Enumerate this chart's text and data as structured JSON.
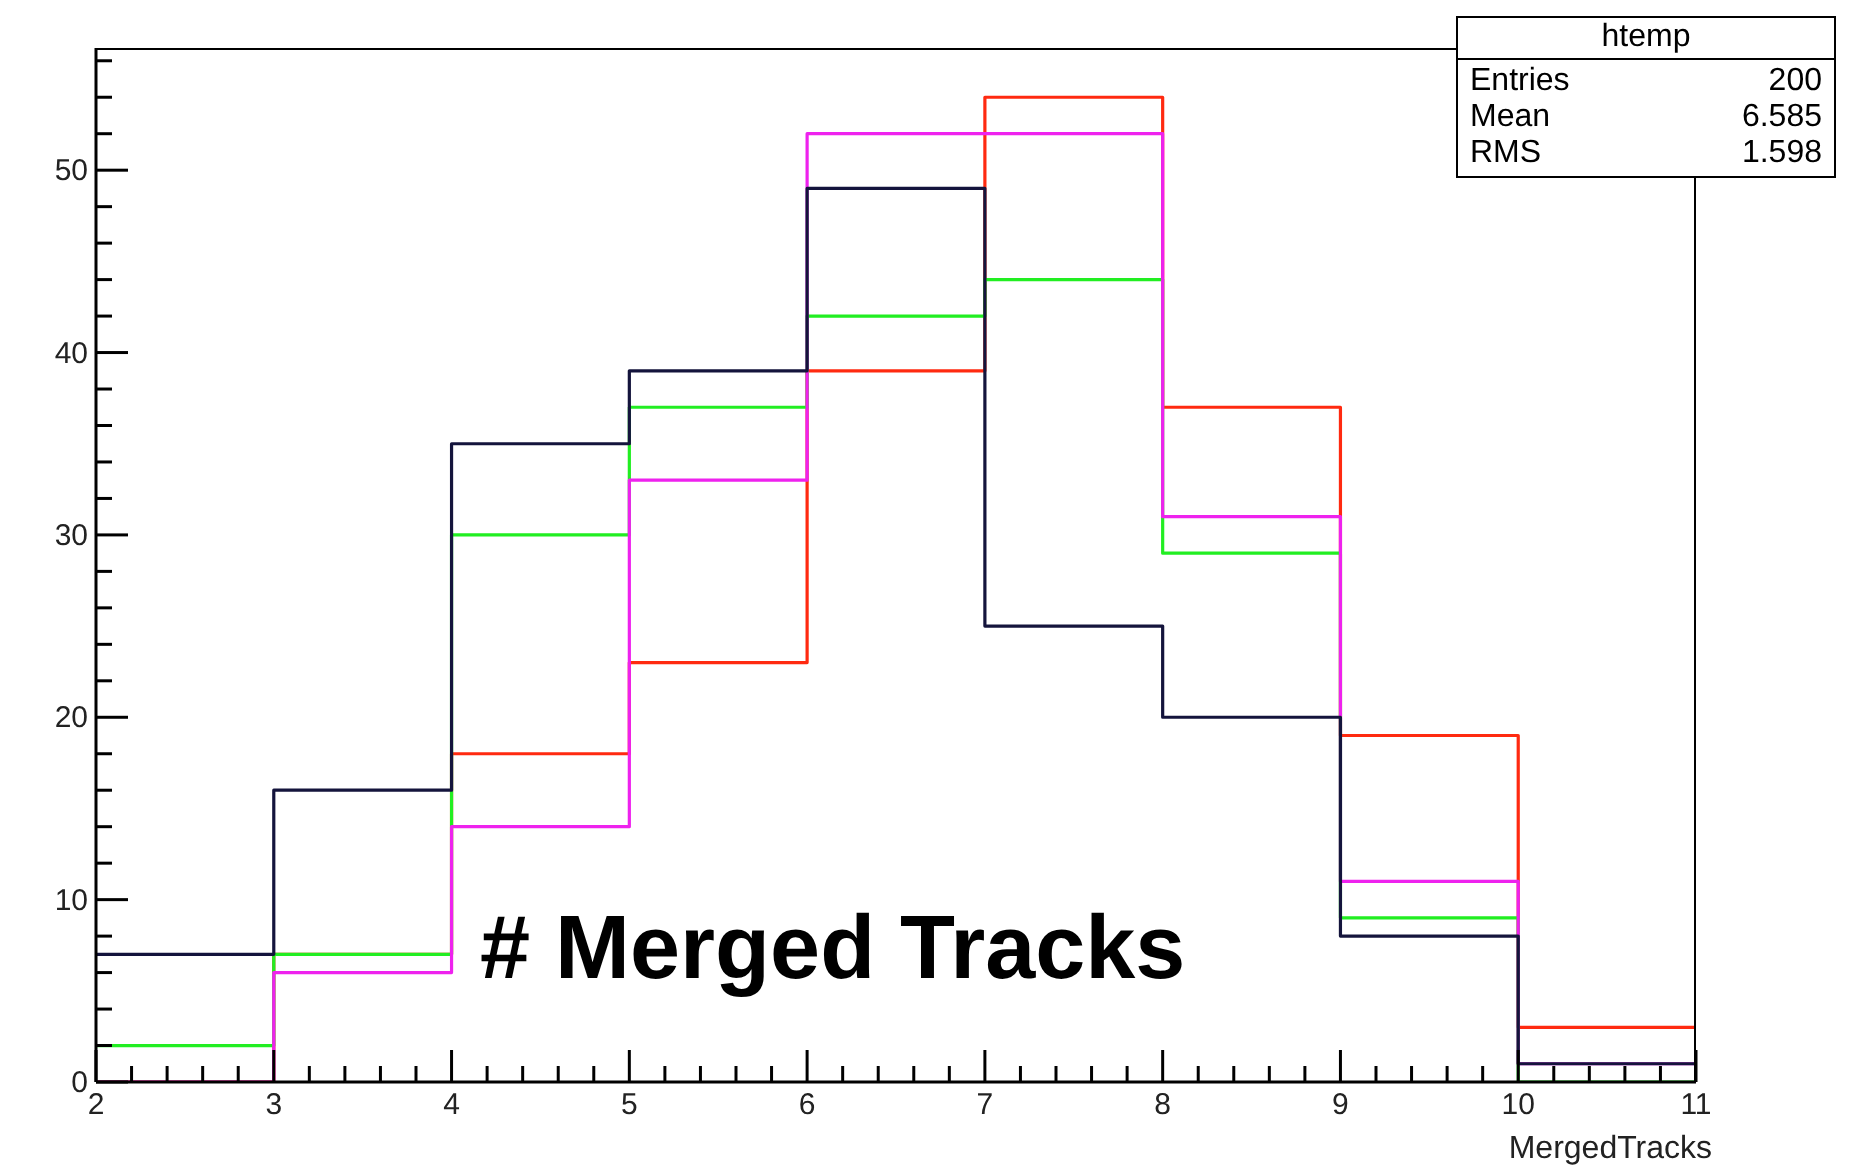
{
  "chart_data": {
    "type": "histogram",
    "xlabel": "MergedTracks",
    "bins": [
      2,
      3,
      4,
      5,
      6,
      7,
      8,
      9,
      10,
      11
    ],
    "series": [
      {
        "color": "#ff2a10",
        "values": [
          0,
          7,
          18,
          23,
          39,
          54,
          37,
          19,
          3
        ]
      },
      {
        "color": "#22ee22",
        "values": [
          2,
          7,
          30,
          37,
          42,
          44,
          29,
          9,
          0
        ]
      },
      {
        "color": "#ee22ee",
        "values": [
          0,
          6,
          14,
          33,
          52,
          52,
          31,
          11,
          1
        ]
      },
      {
        "color": "#14143c",
        "values": [
          7,
          16,
          35,
          39,
          49,
          25,
          20,
          8,
          1
        ]
      }
    ],
    "xlim": [
      2,
      11
    ],
    "xticks": [
      2,
      {
        "value": 2.2,
        "label": null
      },
      {
        "value": 2.4,
        "label": null
      },
      {
        "value": 2.6,
        "label": null
      },
      {
        "value": 2.8,
        "label": null
      },
      3,
      {
        "value": 3.2,
        "label": null
      },
      {
        "value": 3.4,
        "label": null
      },
      {
        "value": 3.6,
        "label": null
      },
      {
        "value": 3.8,
        "label": null
      },
      4,
      {
        "value": 4.2,
        "label": null
      },
      {
        "value": 4.4,
        "label": null
      },
      {
        "value": 4.6,
        "label": null
      },
      {
        "value": 4.8,
        "label": null
      },
      5,
      {
        "value": 5.2,
        "label": null
      },
      {
        "value": 5.4,
        "label": null
      },
      {
        "value": 5.6,
        "label": null
      },
      {
        "value": 5.8,
        "label": null
      },
      6,
      {
        "value": 6.2,
        "label": null
      },
      {
        "value": 6.4,
        "label": null
      },
      {
        "value": 6.6,
        "label": null
      },
      {
        "value": 6.8,
        "label": null
      },
      7,
      {
        "value": 7.2,
        "label": null
      },
      {
        "value": 7.4,
        "label": null
      },
      {
        "value": 7.6,
        "label": null
      },
      {
        "value": 7.8,
        "label": null
      },
      8,
      {
        "value": 8.2,
        "label": null
      },
      {
        "value": 8.4,
        "label": null
      },
      {
        "value": 8.6,
        "label": null
      },
      {
        "value": 8.8,
        "label": null
      },
      9,
      {
        "value": 9.2,
        "label": null
      },
      {
        "value": 9.4,
        "label": null
      },
      {
        "value": 9.6,
        "label": null
      },
      {
        "value": 9.8,
        "label": null
      },
      10,
      {
        "value": 10.2,
        "label": null
      },
      {
        "value": 10.4,
        "label": null
      },
      {
        "value": 10.6,
        "label": null
      },
      {
        "value": 10.8,
        "label": null
      },
      11
    ],
    "ylim": [
      0,
      56.7
    ],
    "yticks": [
      0,
      {
        "value": 2,
        "label": null
      },
      {
        "value": 4,
        "label": null
      },
      {
        "value": 6,
        "label": null
      },
      {
        "value": 8,
        "label": null
      },
      10,
      {
        "value": 12,
        "label": null
      },
      {
        "value": 14,
        "label": null
      },
      {
        "value": 16,
        "label": null
      },
      {
        "value": 18,
        "label": null
      },
      20,
      {
        "value": 22,
        "label": null
      },
      {
        "value": 24,
        "label": null
      },
      {
        "value": 26,
        "label": null
      },
      {
        "value": 28,
        "label": null
      },
      30,
      {
        "value": 32,
        "label": null
      },
      {
        "value": 34,
        "label": null
      },
      {
        "value": 36,
        "label": null
      },
      {
        "value": 38,
        "label": null
      },
      40,
      {
        "value": 42,
        "label": null
      },
      {
        "value": 44,
        "label": null
      },
      {
        "value": 46,
        "label": null
      },
      {
        "value": 48,
        "label": null
      },
      50,
      {
        "value": 52,
        "label": null
      },
      {
        "value": 54,
        "label": null
      },
      {
        "value": 56,
        "label": null
      }
    ],
    "annotations": [
      "htemp",
      "Entries",
      "200",
      "Mean",
      "6.585",
      "RMS",
      "1.598",
      "# Merged Tracks"
    ]
  }
}
